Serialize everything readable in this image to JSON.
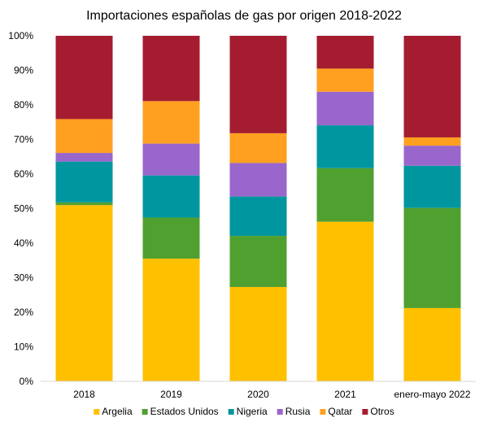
{
  "chart_data": {
    "type": "bar",
    "stacked": true,
    "title": "Importaciones españolas de gas por origen 2018-2022",
    "xlabel": "",
    "ylabel": "",
    "ylim": [
      0,
      100
    ],
    "y_tick_values": [
      0,
      10,
      20,
      30,
      40,
      50,
      60,
      70,
      80,
      90,
      100
    ],
    "y_tick_labels": [
      "0%",
      "10%",
      "20%",
      "30%",
      "40%",
      "50%",
      "60%",
      "70%",
      "80%",
      "90%",
      "100%"
    ],
    "grid": false,
    "legend_position": "bottom",
    "categories": [
      "2018",
      "2019",
      "2020",
      "2021",
      "enero-mayo 2022"
    ],
    "series": [
      {
        "name": "Argelia",
        "color": "#ffc000",
        "values": [
          51.0,
          35.5,
          27.3,
          46.2,
          21.2
        ]
      },
      {
        "name": "Estados Unidos",
        "color": "#50a030",
        "values": [
          0.8,
          11.9,
          14.8,
          15.5,
          29.0
        ]
      },
      {
        "name": "Nigeria",
        "color": "#00969f",
        "values": [
          11.8,
          12.2,
          11.4,
          12.4,
          12.2
        ]
      },
      {
        "name": "Rusia",
        "color": "#9966cc",
        "values": [
          2.5,
          9.2,
          9.7,
          9.7,
          5.8
        ]
      },
      {
        "name": "Qatar",
        "color": "#ffa020",
        "values": [
          9.8,
          12.3,
          8.6,
          6.7,
          2.4
        ]
      },
      {
        "name": "Otros",
        "color": "#a51c30",
        "values": [
          24.1,
          18.9,
          28.2,
          9.5,
          29.4
        ]
      }
    ]
  }
}
